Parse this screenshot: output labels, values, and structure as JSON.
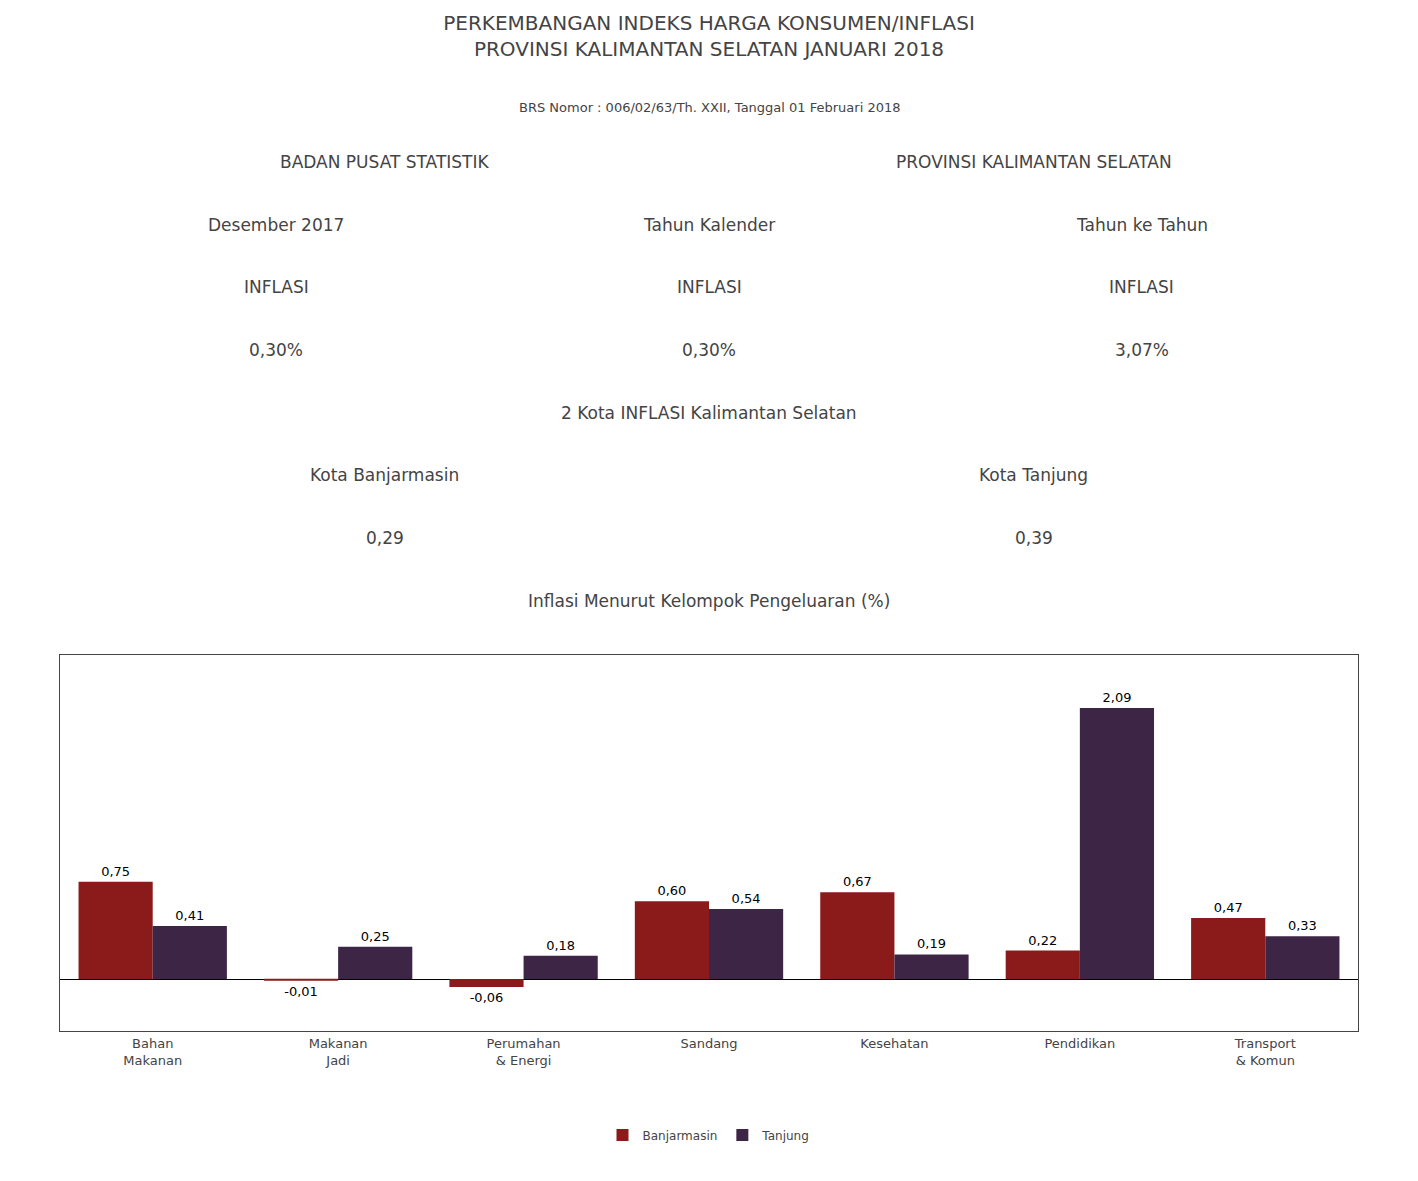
{
  "chart_data": {
    "type": "bar",
    "title": "PERKEMBANGAN INDEKS HARGA KONSUMEN/INFLASI\nPROVINSI KALIMANTAN SELATAN JANUARI 2018",
    "subtitle": "BRS Nomor : 006/02/63/Th. XXII, Tanggal 01 Februari 2018",
    "annotations": [
      [
        "BADAN PUSAT STATISTIK",
        "PROVINSI KALIMANTAN SELATAN"
      ],
      [
        "Desember 2017",
        "Tahun Kalender",
        "Tahun ke Tahun"
      ],
      [
        "INFLASI",
        "INFLASI",
        "INFLASI"
      ],
      [
        "0,30%",
        "0,30%",
        "3,07%"
      ],
      [
        "2 Kota INFLASI Kalimantan Selatan"
      ],
      [
        "Kota Banjarmasin",
        "Kota Tanjung"
      ],
      [
        "0,29",
        "0,39"
      ],
      [
        "Inflasi Menurut Kelompok Pengeluaran (%)"
      ]
    ],
    "categories": [
      "Bahan\nMakanan",
      "Makanan\nJadi",
      "Perumahan\n& Energi",
      "Sandang",
      "Kesehatan",
      "Pendidikan",
      "Transport\n& Komun"
    ],
    "series": [
      {
        "name": "Banjarmasin",
        "color": "#8b1a1a",
        "values": [
          0.75,
          -0.01,
          -0.06,
          0.6,
          0.67,
          0.22,
          0.47
        ],
        "value_labels": [
          "0,75",
          "-0,01",
          "-0,06",
          "0,60",
          "0,67",
          "0,22",
          "0,47"
        ]
      },
      {
        "name": "Tanjung",
        "color": "#3d2645",
        "values": [
          0.41,
          0.25,
          0.18,
          0.54,
          0.19,
          2.09,
          0.33
        ],
        "value_labels": [
          "0,41",
          "0,25",
          "0,18",
          "0,54",
          "0,19",
          "2,09",
          "0,33"
        ]
      }
    ],
    "ylim": [
      -0.4,
      2.5
    ],
    "tick_labels": "x",
    "grid": false,
    "data_labels": true,
    "legend": "bottom"
  }
}
